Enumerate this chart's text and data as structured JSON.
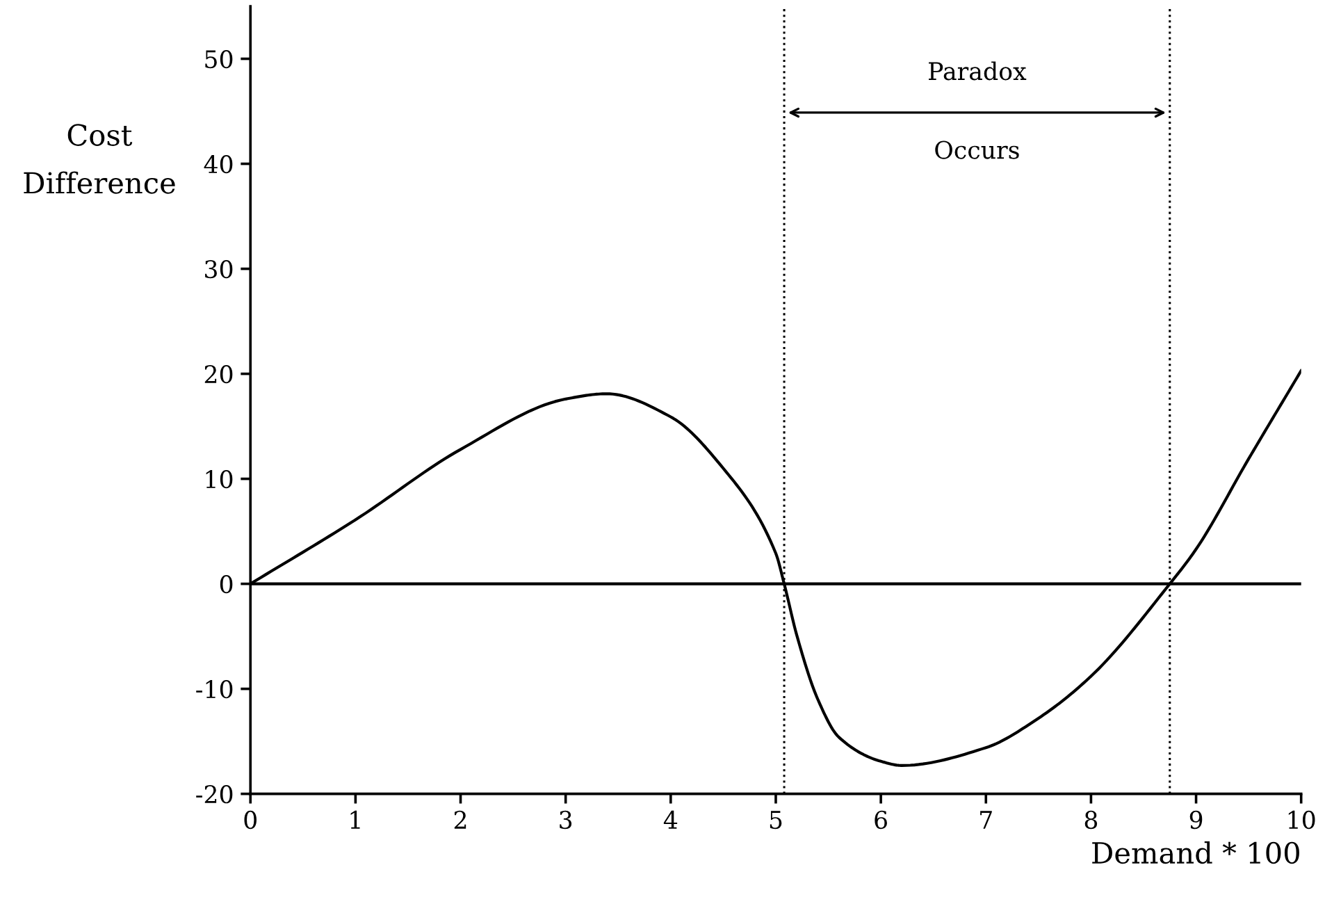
{
  "chart_data": {
    "type": "line",
    "xlabel": "Demand * 100",
    "ylabel": "Cost\nDifference",
    "x": [
      0,
      1,
      2,
      3,
      3.39,
      4,
      4.5,
      5,
      5.08,
      5.2,
      5.4,
      5.6,
      6,
      6.2,
      7,
      7.5,
      8,
      8.75,
      9,
      9.5,
      10
    ],
    "series": [
      {
        "color": "#000000",
        "values": [
          0,
          6.1,
          12.8,
          17.6,
          18.1,
          15.9,
          11.0,
          2.9,
          0,
          -4.9,
          -11,
          -14.6,
          -16.9,
          -17.3,
          -15.6,
          -12.8,
          -8.8,
          0,
          3.3,
          11.9,
          20.3
        ]
      }
    ],
    "xlim": [
      0,
      10
    ],
    "ylim": [
      -20,
      55
    ],
    "xticks": [
      0,
      1,
      2,
      3,
      4,
      5,
      6,
      7,
      8,
      9,
      10
    ],
    "yticks": [
      -20,
      -10,
      0,
      10,
      20,
      30,
      40,
      50
    ],
    "ref_lines": [
      {
        "axis": "y",
        "value": 0,
        "color": "#000000",
        "line_style": "solid"
      },
      {
        "axis": "x",
        "value": 5.08,
        "color": "#000000",
        "line_style": "dotted"
      },
      {
        "axis": "x",
        "value": 8.75,
        "color": "#000000",
        "line_style": "dotted"
      }
    ],
    "annotations": [
      "Paradox",
      "Occurs"
    ],
    "grid": false,
    "legend": false,
    "marker": "none",
    "line_style": "solid"
  }
}
